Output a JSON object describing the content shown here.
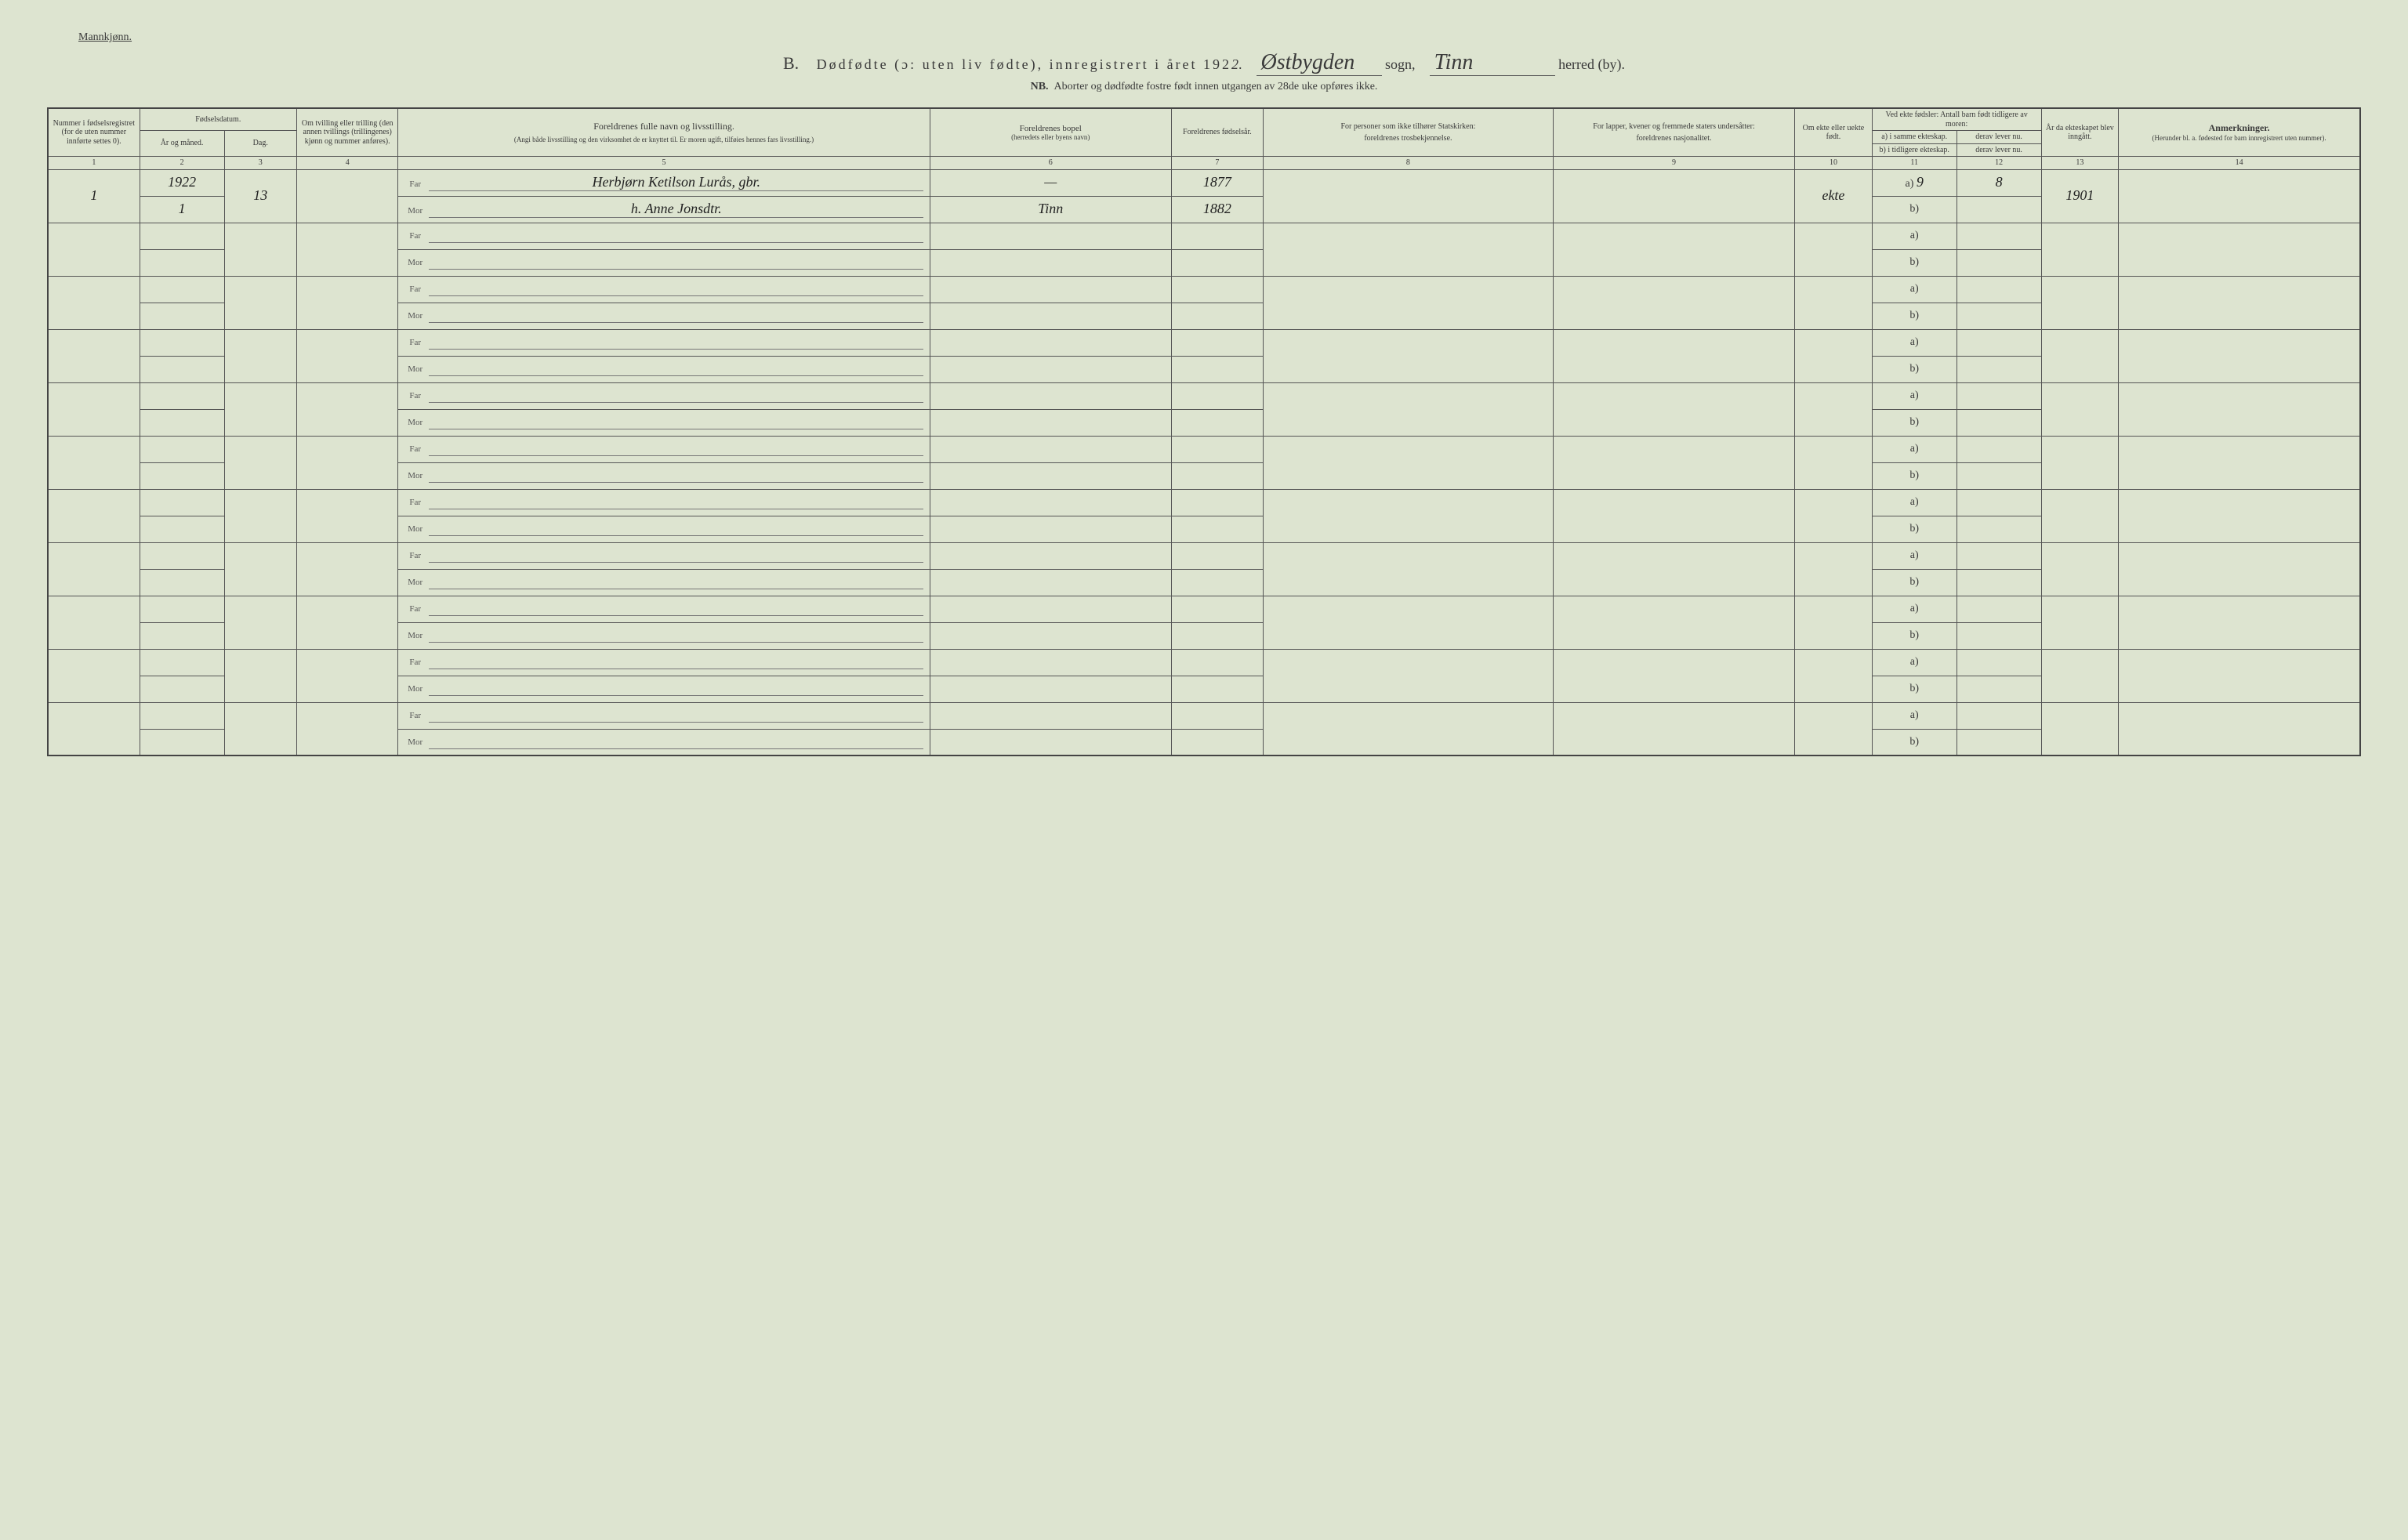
{
  "colors": {
    "paper_bg": "#dde4d0",
    "ink": "#3a3a3a",
    "rule": "#555555",
    "handwriting": "#222222"
  },
  "typography": {
    "body_family": "Georgia, 'Times New Roman', serif",
    "handwriting_family": "'Brush Script MT', cursive",
    "header_fontsize_pt": 18,
    "subheader_fontsize_pt": 14,
    "cell_fontsize_pt": 10,
    "colnum_fontsize_pt": 8,
    "handwriting_fontsize_pt": 18
  },
  "header": {
    "top_left": "Mannkjønn.",
    "letter": "B.",
    "title_main": "Dødfødte (ɔ: uten liv fødte), innregistrert i året 192",
    "year_digit": "2",
    "sogn_hw": "Østbygden",
    "sogn_label": "sogn,",
    "herred_hw": "Tinn",
    "herred_label": "herred (by).",
    "nb_label": "NB.",
    "nb_text": "Aborter og dødfødte fostre født innen utgangen av 28de uke opføres ikke."
  },
  "columns": {
    "c1": "Nummer i fødsels­registret (for de uten nummer innførte settes 0).",
    "c2_3_group": "Fødselsdatum.",
    "c2": "År og måned.",
    "c3": "Dag.",
    "c4": "Om tvilling eller trilling (den annen tvillings (trillingenes) kjønn og nummer anføres).",
    "c5_title": "Foreldrenes fulle navn og livsstilling.",
    "c5_sub": "(Angi både livsstilling og den virksomhet de er knyttet til. Er moren ugift, tilføies hennes fars livsstilling.)",
    "c6_title": "Foreldrenes bopel",
    "c6_sub": "(herredets eller byens navn)",
    "c7": "For­eldrenes fødsels­år.",
    "c8_title": "For personer som ikke tilhører Statskirken:",
    "c8_sub": "foreldrenes trosbekjennelse.",
    "c9_title": "For lapper, kvener og fremmede staters undersåtter:",
    "c9_sub": "foreldrenes nasjonalitet.",
    "c10": "Om ekte eller uekte født.",
    "c11_12_group": "Ved ekte fødsler: Antall barn født tid­ligere av moren:",
    "c11": "a) i samme ekteskap.",
    "c11b": "b) i tidligere ekteskap.",
    "c12": "derav lever nu.",
    "c12b": "derav lever nu.",
    "c13": "År da ekte­skapet blev inn­gått.",
    "c14_title": "Anmerkninger.",
    "c14_sub": "(Herunder bl. a. fødested for barn innregistrert uten nummer).",
    "far_label": "Far",
    "mor_label": "Mor",
    "a_label": "a)",
    "b_label": "b)"
  },
  "colnums": [
    "1",
    "2",
    "3",
    "4",
    "5",
    "6",
    "7",
    "8",
    "9",
    "10",
    "11",
    "12",
    "13",
    "14"
  ],
  "entries": [
    {
      "num": "1",
      "year_month": [
        "1922",
        "1"
      ],
      "day": "13",
      "far_name": "Herbjørn Ketilson Lurås, gbr.",
      "mor_name": "h. Anne Jonsdtr.",
      "far_bopel": "—",
      "mor_bopel": "Tinn",
      "far_birthyear": "1877",
      "mor_birthyear": "1882",
      "ekte": "ekte",
      "a_val": "9",
      "a_lever": "8",
      "b_val": "",
      "b_lever": "",
      "ekteskap_year": "1901"
    }
  ],
  "empty_row_count": 10
}
